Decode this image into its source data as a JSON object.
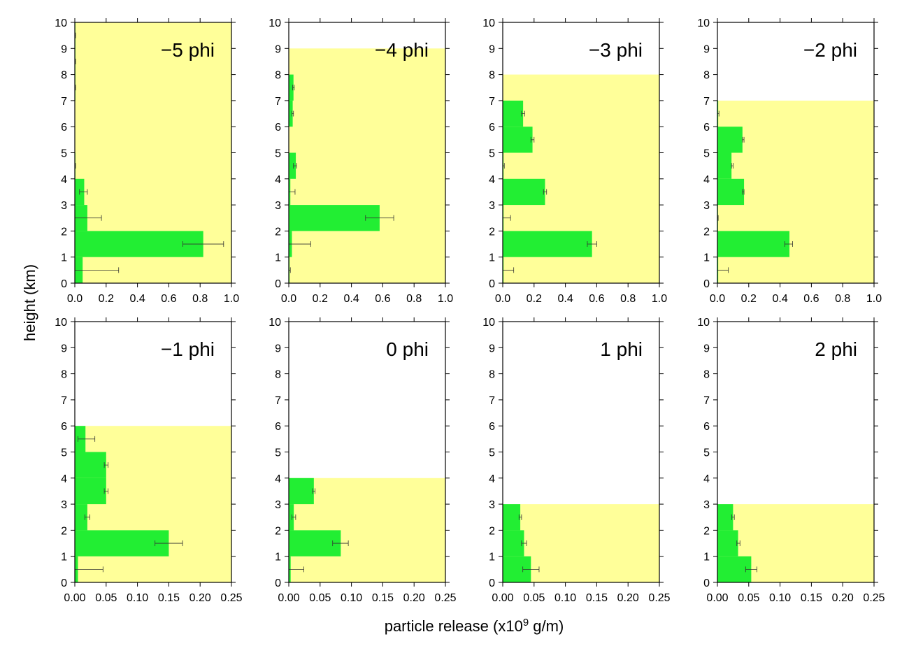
{
  "figure": {
    "ylabel": "height (km)",
    "xlabel_prefix": "particle release (x10",
    "xlabel_sup": "9",
    "xlabel_suffix": " g/m)"
  },
  "colors": {
    "background_band": "#ffff99",
    "bars": "#22ee33",
    "axis": "#000000"
  },
  "chart_data": [
    {
      "type": "bar",
      "orientation": "horizontal",
      "title": "−5 phi",
      "xlim": [
        0,
        1.0
      ],
      "ylim": [
        0,
        10
      ],
      "xticks": [
        "0.0",
        "0.2",
        "0.4",
        "0.6",
        "0.8",
        "1.0"
      ],
      "xtick_values": [
        0,
        0.2,
        0.4,
        0.6,
        0.8,
        1.0
      ],
      "yticks": [
        "0",
        "1",
        "2",
        "3",
        "4",
        "5",
        "6",
        "7",
        "8",
        "9",
        "10"
      ],
      "yellow_top": 10,
      "bars": [
        {
          "y0": 0,
          "y1": 1,
          "value": 0.05,
          "err_lo": 0.0,
          "err_hi": 0.28
        },
        {
          "y0": 1,
          "y1": 2,
          "value": 0.82,
          "err_lo": 0.69,
          "err_hi": 0.95
        },
        {
          "y0": 2,
          "y1": 3,
          "value": 0.08,
          "err_lo": 0.0,
          "err_hi": 0.17
        },
        {
          "y0": 3,
          "y1": 4,
          "value": 0.06,
          "err_lo": 0.03,
          "err_hi": 0.08
        },
        {
          "y0": 4,
          "y1": 5,
          "value": 0.002,
          "err_lo": 0.0,
          "err_hi": 0.005
        },
        {
          "y0": 5,
          "y1": 6,
          "value": 0,
          "err_lo": 0,
          "err_hi": 0
        },
        {
          "y0": 6,
          "y1": 7,
          "value": 0,
          "err_lo": 0,
          "err_hi": 0
        },
        {
          "y0": 7,
          "y1": 8,
          "value": 0.002,
          "err_lo": 0.0,
          "err_hi": 0.005
        },
        {
          "y0": 8,
          "y1": 9,
          "value": 0.002,
          "err_lo": 0.0,
          "err_hi": 0.005
        },
        {
          "y0": 9,
          "y1": 10,
          "value": 0.002,
          "err_lo": 0.0,
          "err_hi": 0.005
        }
      ]
    },
    {
      "type": "bar",
      "orientation": "horizontal",
      "title": "−4 phi",
      "xlim": [
        0,
        1.0
      ],
      "ylim": [
        0,
        10
      ],
      "xticks": [
        "0.0",
        "0.2",
        "0.4",
        "0.6",
        "0.8",
        "1.0"
      ],
      "xtick_values": [
        0,
        0.2,
        0.4,
        0.6,
        0.8,
        1.0
      ],
      "yticks": [
        "0",
        "1",
        "2",
        "3",
        "4",
        "5",
        "6",
        "7",
        "8",
        "9",
        "10"
      ],
      "yellow_top": 9,
      "bars": [
        {
          "y0": 0,
          "y1": 1,
          "value": 0.005,
          "err_lo": 0.0,
          "err_hi": 0.01
        },
        {
          "y0": 1,
          "y1": 2,
          "value": 0.02,
          "err_lo": 0.0,
          "err_hi": 0.14
        },
        {
          "y0": 2,
          "y1": 3,
          "value": 0.58,
          "err_lo": 0.49,
          "err_hi": 0.67
        },
        {
          "y0": 3,
          "y1": 4,
          "value": 0.01,
          "err_lo": 0.0,
          "err_hi": 0.04
        },
        {
          "y0": 4,
          "y1": 5,
          "value": 0.045,
          "err_lo": 0.03,
          "err_hi": 0.05
        },
        {
          "y0": 5,
          "y1": 6,
          "value": 0,
          "err_lo": 0,
          "err_hi": 0
        },
        {
          "y0": 6,
          "y1": 7,
          "value": 0.025,
          "err_lo": 0.02,
          "err_hi": 0.03
        },
        {
          "y0": 7,
          "y1": 8,
          "value": 0.03,
          "err_lo": 0.025,
          "err_hi": 0.035
        }
      ]
    },
    {
      "type": "bar",
      "orientation": "horizontal",
      "title": "−3 phi",
      "xlim": [
        0,
        1.0
      ],
      "ylim": [
        0,
        10
      ],
      "xticks": [
        "0.0",
        "0.2",
        "0.4",
        "0.6",
        "0.8",
        "1.0"
      ],
      "xtick_values": [
        0,
        0.2,
        0.4,
        0.6,
        0.8,
        1.0
      ],
      "yticks": [
        "0",
        "1",
        "2",
        "3",
        "4",
        "5",
        "6",
        "7",
        "8",
        "9",
        "10"
      ],
      "yellow_top": 8,
      "bars": [
        {
          "y0": 0,
          "y1": 1,
          "value": 0.005,
          "err_lo": 0.0,
          "err_hi": 0.07
        },
        {
          "y0": 1,
          "y1": 2,
          "value": 0.57,
          "err_lo": 0.54,
          "err_hi": 0.6
        },
        {
          "y0": 2,
          "y1": 3,
          "value": 0.005,
          "err_lo": 0.0,
          "err_hi": 0.05
        },
        {
          "y0": 3,
          "y1": 4,
          "value": 0.27,
          "err_lo": 0.26,
          "err_hi": 0.28
        },
        {
          "y0": 4,
          "y1": 5,
          "value": 0.005,
          "err_lo": 0.0,
          "err_hi": 0.01
        },
        {
          "y0": 5,
          "y1": 6,
          "value": 0.19,
          "err_lo": 0.18,
          "err_hi": 0.2
        },
        {
          "y0": 6,
          "y1": 7,
          "value": 0.13,
          "err_lo": 0.12,
          "err_hi": 0.14
        }
      ]
    },
    {
      "type": "bar",
      "orientation": "horizontal",
      "title": "−2 phi",
      "xlim": [
        0,
        1.0
      ],
      "ylim": [
        0,
        10
      ],
      "xticks": [
        "0.0",
        "0.2",
        "0.4",
        "0.6",
        "0.8",
        "1.0"
      ],
      "xtick_values": [
        0,
        0.2,
        0.4,
        0.6,
        0.8,
        1.0
      ],
      "yticks": [
        "0",
        "1",
        "2",
        "3",
        "4",
        "5",
        "6",
        "7",
        "8",
        "9",
        "10"
      ],
      "yellow_top": 7,
      "bars": [
        {
          "y0": 0,
          "y1": 1,
          "value": 0.005,
          "err_lo": 0.0,
          "err_hi": 0.07
        },
        {
          "y0": 1,
          "y1": 2,
          "value": 0.46,
          "err_lo": 0.43,
          "err_hi": 0.48
        },
        {
          "y0": 2,
          "y1": 3,
          "value": 0.002,
          "err_lo": 0.0,
          "err_hi": 0.005
        },
        {
          "y0": 3,
          "y1": 4,
          "value": 0.17,
          "err_lo": 0.16,
          "err_hi": 0.17
        },
        {
          "y0": 4,
          "y1": 5,
          "value": 0.09,
          "err_lo": 0.09,
          "err_hi": 0.1
        },
        {
          "y0": 5,
          "y1": 6,
          "value": 0.16,
          "err_lo": 0.16,
          "err_hi": 0.17
        },
        {
          "y0": 6,
          "y1": 7,
          "value": 0.005,
          "err_lo": 0.0,
          "err_hi": 0.01
        }
      ]
    },
    {
      "type": "bar",
      "orientation": "horizontal",
      "title": "−1 phi",
      "xlim": [
        0,
        0.25
      ],
      "ylim": [
        0,
        10
      ],
      "xticks": [
        "0.00",
        "0.05",
        "0.10",
        "0.15",
        "0.20",
        "0.25"
      ],
      "xtick_values": [
        0,
        0.05,
        0.1,
        0.15,
        0.2,
        0.25
      ],
      "yticks": [
        "0",
        "1",
        "2",
        "3",
        "4",
        "5",
        "6",
        "7",
        "8",
        "9",
        "10"
      ],
      "yellow_top": 6,
      "bars": [
        {
          "y0": 0,
          "y1": 1,
          "value": 0.005,
          "err_lo": 0.0,
          "err_hi": 0.045
        },
        {
          "y0": 1,
          "y1": 2,
          "value": 0.15,
          "err_lo": 0.128,
          "err_hi": 0.172
        },
        {
          "y0": 2,
          "y1": 3,
          "value": 0.02,
          "err_lo": 0.016,
          "err_hi": 0.024
        },
        {
          "y0": 3,
          "y1": 4,
          "value": 0.05,
          "err_lo": 0.047,
          "err_hi": 0.053
        },
        {
          "y0": 4,
          "y1": 5,
          "value": 0.05,
          "err_lo": 0.047,
          "err_hi": 0.053
        },
        {
          "y0": 5,
          "y1": 6,
          "value": 0.017,
          "err_lo": 0.005,
          "err_hi": 0.032
        }
      ]
    },
    {
      "type": "bar",
      "orientation": "horizontal",
      "title": "0 phi",
      "xlim": [
        0,
        0.25
      ],
      "ylim": [
        0,
        10
      ],
      "xticks": [
        "0.00",
        "0.05",
        "0.10",
        "0.15",
        "0.20",
        "0.25"
      ],
      "xtick_values": [
        0,
        0.05,
        0.1,
        0.15,
        0.2,
        0.25
      ],
      "yticks": [
        "0",
        "1",
        "2",
        "3",
        "4",
        "5",
        "6",
        "7",
        "8",
        "9",
        "10"
      ],
      "yellow_top": 4,
      "bars": [
        {
          "y0": 0,
          "y1": 1,
          "value": 0.003,
          "err_lo": 0.0,
          "err_hi": 0.024
        },
        {
          "y0": 1,
          "y1": 2,
          "value": 0.083,
          "err_lo": 0.07,
          "err_hi": 0.095
        },
        {
          "y0": 2,
          "y1": 3,
          "value": 0.008,
          "err_lo": 0.005,
          "err_hi": 0.011
        },
        {
          "y0": 3,
          "y1": 4,
          "value": 0.04,
          "err_lo": 0.038,
          "err_hi": 0.042
        }
      ]
    },
    {
      "type": "bar",
      "orientation": "horizontal",
      "title": "1 phi",
      "xlim": [
        0,
        0.25
      ],
      "ylim": [
        0,
        10
      ],
      "xticks": [
        "0.00",
        "0.05",
        "0.10",
        "0.15",
        "0.20",
        "0.25"
      ],
      "xtick_values": [
        0,
        0.05,
        0.1,
        0.15,
        0.2,
        0.25
      ],
      "yticks": [
        "0",
        "1",
        "2",
        "3",
        "4",
        "5",
        "6",
        "7",
        "8",
        "9",
        "10"
      ],
      "yellow_top": 3,
      "bars": [
        {
          "y0": 0,
          "y1": 1,
          "value": 0.045,
          "err_lo": 0.032,
          "err_hi": 0.058
        },
        {
          "y0": 1,
          "y1": 2,
          "value": 0.034,
          "err_lo": 0.03,
          "err_hi": 0.038
        },
        {
          "y0": 2,
          "y1": 3,
          "value": 0.028,
          "err_lo": 0.026,
          "err_hi": 0.03
        }
      ]
    },
    {
      "type": "bar",
      "orientation": "horizontal",
      "title": "2 phi",
      "xlim": [
        0,
        0.25
      ],
      "ylim": [
        0,
        10
      ],
      "xticks": [
        "0.00",
        "0.05",
        "0.10",
        "0.15",
        "0.20",
        "0.25"
      ],
      "xtick_values": [
        0,
        0.05,
        0.1,
        0.15,
        0.2,
        0.25
      ],
      "yticks": [
        "0",
        "1",
        "2",
        "3",
        "4",
        "5",
        "6",
        "7",
        "8",
        "9",
        "10"
      ],
      "yellow_top": 3,
      "bars": [
        {
          "y0": 0,
          "y1": 1,
          "value": 0.054,
          "err_lo": 0.045,
          "err_hi": 0.063
        },
        {
          "y0": 1,
          "y1": 2,
          "value": 0.033,
          "err_lo": 0.031,
          "err_hi": 0.036
        },
        {
          "y0": 2,
          "y1": 3,
          "value": 0.025,
          "err_lo": 0.023,
          "err_hi": 0.027
        }
      ]
    }
  ]
}
